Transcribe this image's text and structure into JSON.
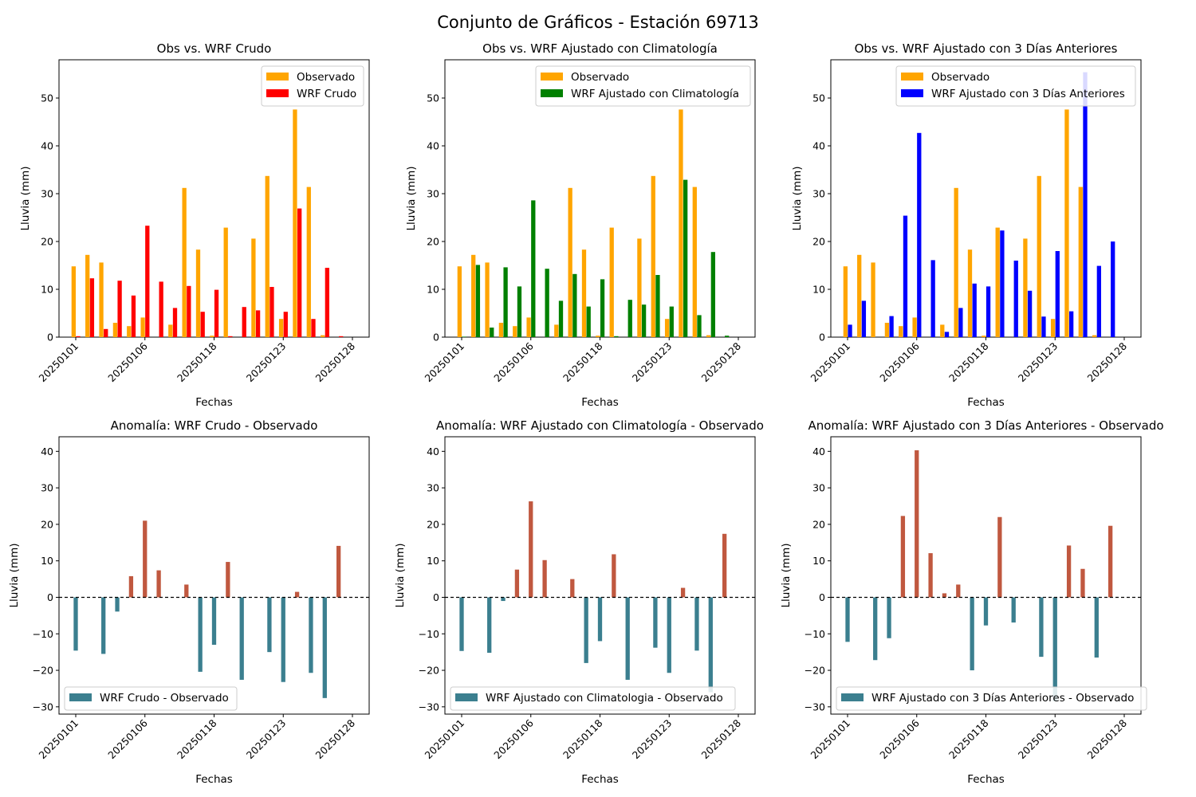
{
  "suptitle": "Conjunto de Gráficos - Estación 69713",
  "colors": {
    "observed": "#ffa500",
    "raw": "#ff0000",
    "clim": "#008000",
    "prev3": "#0000ff",
    "anom_pos": "#c0583f",
    "anom_neg": "#3b7f8f",
    "zero_line": "#000000"
  },
  "chart_data": [
    {
      "type": "bar",
      "title": "Obs vs. WRF Crudo",
      "xlabel": "Fechas",
      "ylabel": "Lluvia (mm)",
      "ylim": [
        0,
        58
      ],
      "yticks": [
        0,
        10,
        20,
        30,
        40,
        50
      ],
      "xticks": [
        "20250101",
        "20250106",
        "20250118",
        "20250123",
        "20250128"
      ],
      "legend": "top-right",
      "series": [
        {
          "name": "Observado",
          "color_key": "observed",
          "values": [
            14.8,
            17.2,
            15.6,
            3.0,
            2.3,
            4.1,
            null,
            2.6,
            31.2,
            18.3,
            0.3,
            22.9,
            null,
            20.6,
            33.7,
            3.8,
            47.6,
            31.4,
            0.4,
            null
          ]
        },
        {
          "name": "WRF Crudo",
          "color_key": "raw",
          "values": [
            0.2,
            12.3,
            1.7,
            11.8,
            8.7,
            23.3,
            11.6,
            6.1,
            10.7,
            5.3,
            9.9,
            0.2,
            6.3,
            5.6,
            10.5,
            5.3,
            26.9,
            3.8,
            14.5,
            0.2
          ]
        }
      ]
    },
    {
      "type": "bar",
      "title": "Obs vs. WRF Ajustado con Climatología",
      "xlabel": "Fechas",
      "ylabel": "Lluvia (mm)",
      "ylim": [
        0,
        58
      ],
      "yticks": [
        0,
        10,
        20,
        30,
        40,
        50
      ],
      "xticks": [
        "20250101",
        "20250106",
        "20250118",
        "20250123",
        "20250128"
      ],
      "legend": "top-center",
      "series": [
        {
          "name": "Observado",
          "color_key": "observed",
          "values": [
            14.8,
            17.2,
            15.6,
            3.0,
            2.3,
            4.1,
            null,
            2.6,
            31.2,
            18.3,
            0.3,
            22.9,
            null,
            20.6,
            33.7,
            3.8,
            47.6,
            31.4,
            0.4,
            null
          ]
        },
        {
          "name": "WRF Ajustado con Climatología",
          "color_key": "clim",
          "values": [
            0.1,
            15.1,
            2.0,
            14.6,
            10.6,
            28.6,
            14.3,
            7.6,
            13.2,
            6.4,
            12.1,
            0.2,
            7.8,
            6.8,
            13.0,
            6.4,
            32.9,
            4.6,
            17.8,
            0.3
          ]
        }
      ]
    },
    {
      "type": "bar",
      "title": "Obs vs. WRF Ajustado con 3 Días Anteriores",
      "xlabel": "Fechas",
      "ylabel": "Lluvia (mm)",
      "ylim": [
        0,
        58
      ],
      "yticks": [
        0,
        10,
        20,
        30,
        40,
        50
      ],
      "xticks": [
        "20250101",
        "20250106",
        "20250118",
        "20250123",
        "20250128"
      ],
      "legend": "top-center",
      "series": [
        {
          "name": "Observado",
          "color_key": "observed",
          "values": [
            14.8,
            17.2,
            15.6,
            3.0,
            2.3,
            4.1,
            null,
            2.6,
            31.2,
            18.3,
            0.3,
            22.9,
            null,
            20.6,
            33.7,
            3.8,
            47.6,
            31.4,
            0.4,
            null
          ]
        },
        {
          "name": "WRF Ajustado con 3 Días Anteriores",
          "color_key": "prev3",
          "values": [
            2.6,
            7.6,
            null,
            4.4,
            25.4,
            42.7,
            16.1,
            1.1,
            6.1,
            11.2,
            10.6,
            22.3,
            16.0,
            9.7,
            4.3,
            18.0,
            5.4,
            55.4,
            14.9,
            20.0
          ]
        }
      ]
    },
    {
      "type": "bar",
      "title": "Anomalía: WRF Crudo - Observado",
      "xlabel": "Fechas",
      "ylabel": "Lluvia (mm)",
      "ylim": [
        -32,
        44
      ],
      "yticks": [
        -30,
        -20,
        -10,
        0,
        10,
        20,
        30,
        40
      ],
      "xticks": [
        "20250101",
        "20250106",
        "20250118",
        "20250123",
        "20250128"
      ],
      "legend": "bottom-left",
      "series": [
        {
          "name": "WRF Crudo - Observado",
          "values": [
            -14.6,
            null,
            -15.5,
            -3.9,
            5.8,
            21.0,
            7.4,
            null,
            3.5,
            -20.4,
            -13.0,
            9.7,
            -22.6,
            null,
            -15.0,
            -23.2,
            1.5,
            -20.7,
            -27.6,
            14.1
          ]
        }
      ]
    },
    {
      "type": "bar",
      "title": "Anomalía: WRF Ajustado con Climatología - Observado",
      "xlabel": "Fechas",
      "ylabel": "Lluvia (mm)",
      "ylim": [
        -32,
        44
      ],
      "yticks": [
        -30,
        -20,
        -10,
        0,
        10,
        20,
        30,
        40
      ],
      "xticks": [
        "20250101",
        "20250106",
        "20250118",
        "20250123",
        "20250128"
      ],
      "legend": "bottom-left",
      "series": [
        {
          "name": "WRF Ajustado con Climatologia - Observado",
          "values": [
            -14.7,
            null,
            -15.2,
            -1.0,
            7.6,
            26.3,
            10.2,
            null,
            5.0,
            -18.0,
            -12.0,
            11.8,
            -22.6,
            null,
            -13.8,
            -20.7,
            2.6,
            -14.6,
            -26.0,
            17.4
          ]
        }
      ]
    },
    {
      "type": "bar",
      "title": "Anomalía: WRF Ajustado con 3 Días Anteriores - Observado",
      "xlabel": "Fechas",
      "ylabel": "Lluvia (mm)",
      "ylim": [
        -32,
        44
      ],
      "yticks": [
        -30,
        -20,
        -10,
        0,
        10,
        20,
        30,
        40
      ],
      "xticks": [
        "20250101",
        "20250106",
        "20250118",
        "20250123",
        "20250128"
      ],
      "legend": "bottom-left",
      "series": [
        {
          "name": "WRF Ajustado con 3 Días Anteriores - Observado",
          "values": [
            -12.2,
            null,
            -17.2,
            -11.2,
            22.3,
            40.3,
            12.1,
            1.1,
            3.5,
            -20.0,
            -7.7,
            22.0,
            -6.9,
            null,
            -16.3,
            -28.5,
            14.2,
            7.8,
            -16.5,
            19.6
          ]
        }
      ]
    }
  ]
}
